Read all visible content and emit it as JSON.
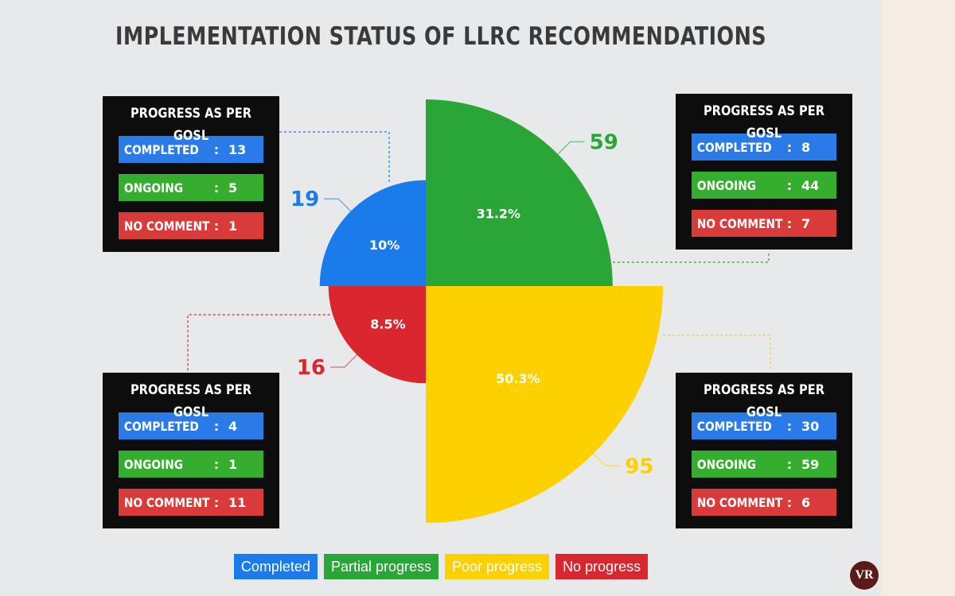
{
  "title": "IMPLEMENTATION STATUS OF LLRC RECOMMENDATIONS",
  "chart_data": {
    "type": "pie",
    "subtype": "polar-area",
    "title": "IMPLEMENTATION STATUS OF LLRC RECOMMENDATIONS",
    "slices": [
      {
        "label": "Completed",
        "count": 19,
        "percent_label": "10%",
        "color": "#1c7bea"
      },
      {
        "label": "Partial progress",
        "count": 59,
        "percent_label": "31.2%",
        "color": "#2aa537"
      },
      {
        "label": "Poor progress",
        "count": 95,
        "percent_label": "50.3%",
        "color": "#fdd000"
      },
      {
        "label": "No progress",
        "count": 16,
        "percent_label": "8.5%",
        "color": "#d9262f"
      }
    ],
    "legend_position": "bottom"
  },
  "boxes": {
    "top_left": {
      "heading": "PROGRESS AS PER GOSL",
      "rows": [
        {
          "label": "COMPLETED",
          "sep": ":",
          "value": "13"
        },
        {
          "label": "ONGOING",
          "sep": ":",
          "value": "5"
        },
        {
          "label": "NO COMMENT",
          "sep": ":",
          "value": "1"
        }
      ]
    },
    "top_right": {
      "heading": "PROGRESS AS PER GOSL",
      "rows": [
        {
          "label": "COMPLETED",
          "sep": ":",
          "value": "8"
        },
        {
          "label": "ONGOING",
          "sep": ":",
          "value": "44"
        },
        {
          "label": "NO COMMENT",
          "sep": ":",
          "value": "7"
        }
      ]
    },
    "bottom_left": {
      "heading": "PROGRESS AS PER GOSL",
      "rows": [
        {
          "label": "COMPLETED",
          "sep": ":",
          "value": "4"
        },
        {
          "label": "ONGOING",
          "sep": ":",
          "value": "1"
        },
        {
          "label": "NO COMMENT",
          "sep": ":",
          "value": "11"
        }
      ]
    },
    "bottom_right": {
      "heading": "PROGRESS AS PER GOSL",
      "rows": [
        {
          "label": "COMPLETED",
          "sep": ":",
          "value": "30"
        },
        {
          "label": "ONGOING",
          "sep": ":",
          "value": "59"
        },
        {
          "label": "NO COMMENT",
          "sep": ":",
          "value": "6"
        }
      ]
    }
  },
  "legend": [
    {
      "label": "Completed"
    },
    {
      "label": "Partial progress"
    },
    {
      "label": "Poor progress"
    },
    {
      "label": "No progress"
    }
  ],
  "logo": {
    "text": "VR"
  }
}
